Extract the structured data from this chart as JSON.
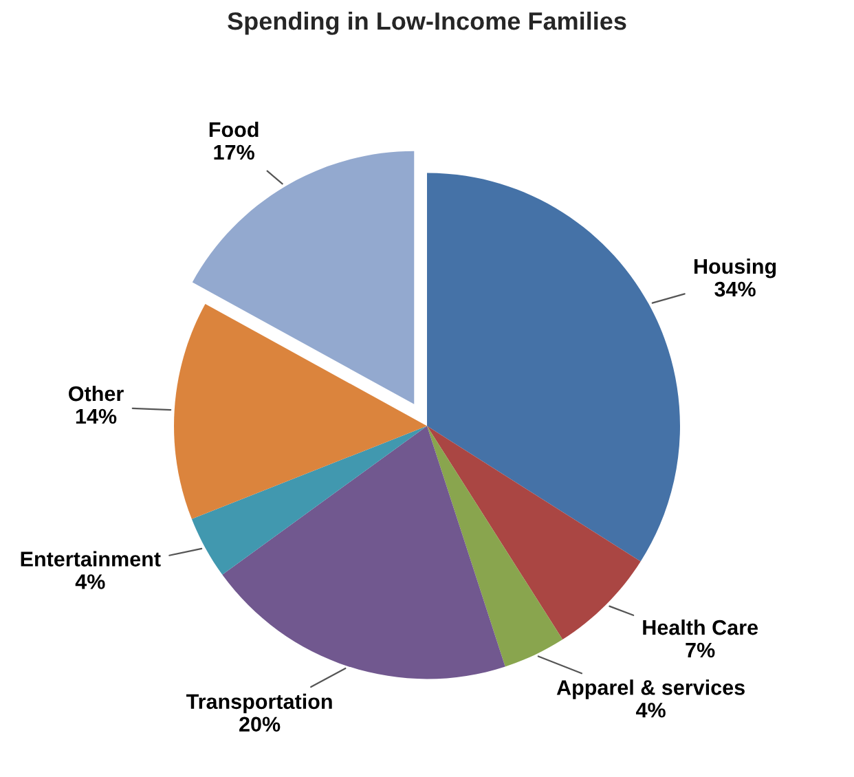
{
  "chart_data": {
    "type": "pie",
    "title": "Spending in Low-Income Families",
    "categories": [
      "Housing",
      "Health Care",
      "Apparel & services",
      "Transportation",
      "Entertainment",
      "Other",
      "Food"
    ],
    "values": [
      34,
      7,
      4,
      20,
      4,
      14,
      17
    ],
    "colors": [
      "#4572a7",
      "#aa4643",
      "#89a54e",
      "#71588f",
      "#4198af",
      "#db843d",
      "#93a9cf"
    ],
    "value_labels": [
      "34%",
      "7%",
      "4%",
      "20%",
      "4%",
      "14%",
      "17%"
    ],
    "legend": false
  }
}
